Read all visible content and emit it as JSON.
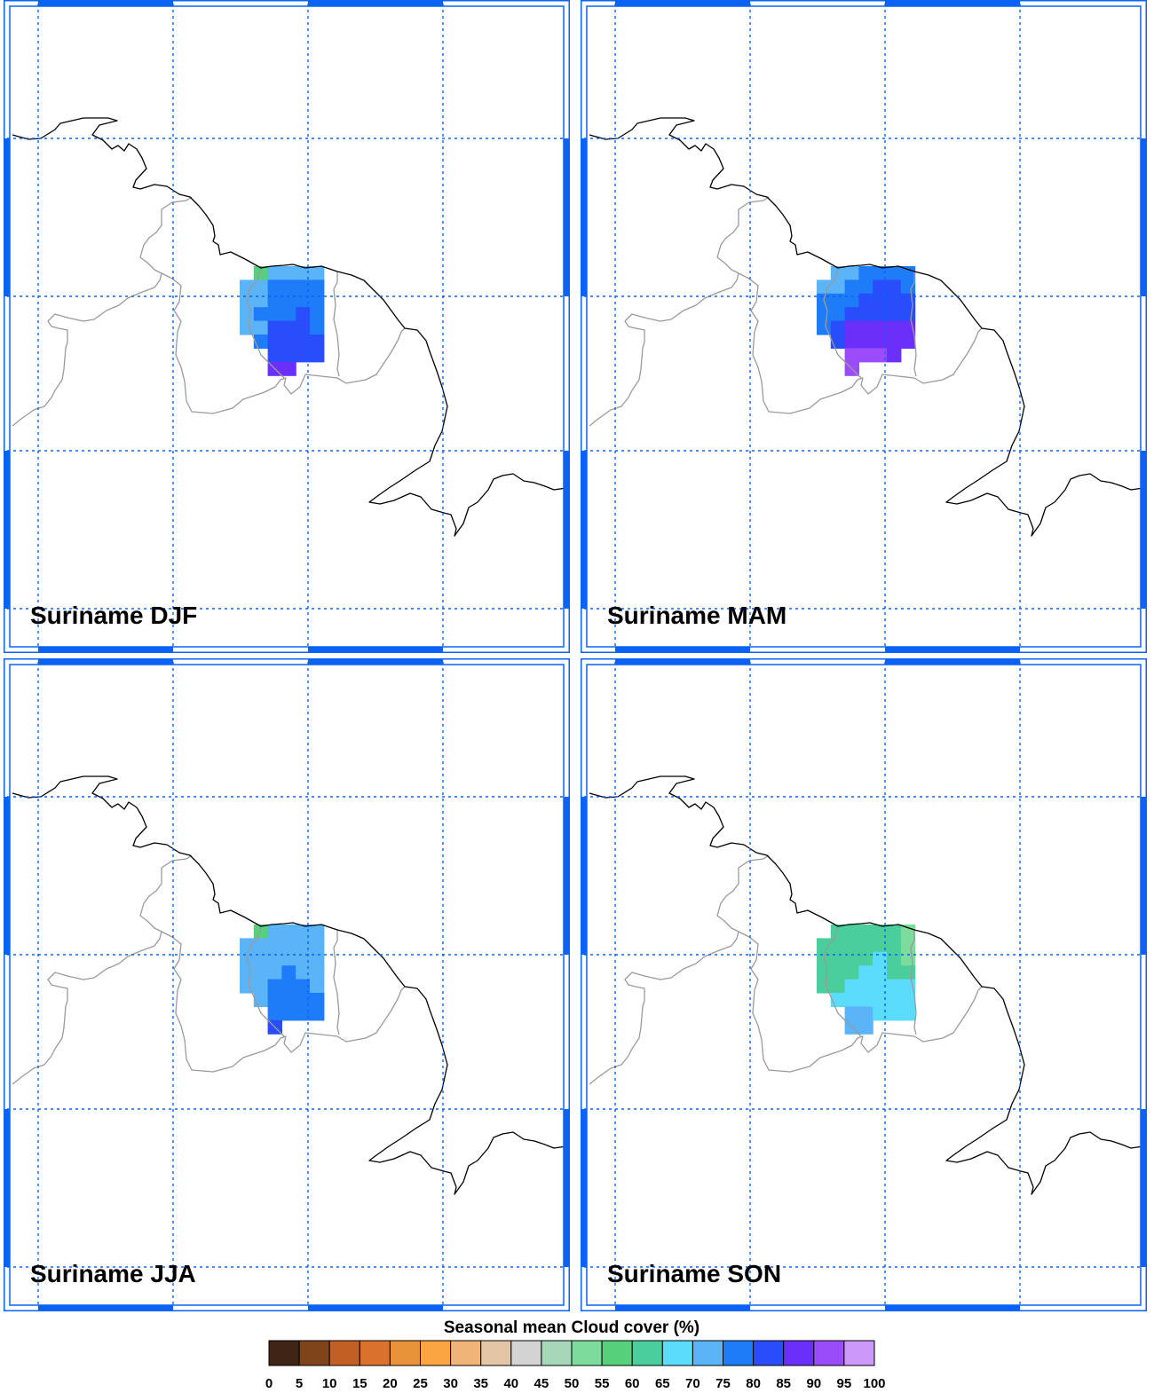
{
  "panels": [
    {
      "label": "Suriname DJF",
      "season": "DJF",
      "cells": [
        [
          null,
          55,
          70,
          70,
          70,
          70,
          null
        ],
        [
          70,
          70,
          75,
          75,
          75,
          75,
          null
        ],
        [
          70,
          70,
          75,
          75,
          75,
          75,
          null
        ],
        [
          70,
          75,
          75,
          75,
          80,
          75,
          null
        ],
        [
          70,
          70,
          80,
          80,
          80,
          75,
          null
        ],
        [
          null,
          75,
          80,
          80,
          80,
          80,
          null
        ],
        [
          null,
          null,
          80,
          80,
          80,
          80,
          null
        ],
        [
          null,
          null,
          85,
          85,
          null,
          null,
          null
        ]
      ]
    },
    {
      "label": "Suriname MAM",
      "season": "MAM",
      "cells": [
        [
          null,
          70,
          70,
          75,
          75,
          75,
          75
        ],
        [
          70,
          70,
          75,
          75,
          80,
          80,
          75
        ],
        [
          75,
          75,
          75,
          80,
          80,
          80,
          80
        ],
        [
          75,
          75,
          80,
          80,
          80,
          80,
          80
        ],
        [
          75,
          80,
          85,
          85,
          85,
          85,
          85
        ],
        [
          null,
          80,
          85,
          85,
          85,
          85,
          85
        ],
        [
          null,
          null,
          90,
          90,
          90,
          85,
          null
        ],
        [
          null,
          null,
          90,
          null,
          null,
          null,
          null
        ]
      ]
    },
    {
      "label": "Suriname JJA",
      "season": "JJA",
      "cells": [
        [
          null,
          55,
          70,
          70,
          70,
          70,
          null
        ],
        [
          70,
          70,
          70,
          70,
          70,
          70,
          null
        ],
        [
          70,
          70,
          70,
          70,
          70,
          70,
          null
        ],
        [
          70,
          70,
          70,
          75,
          70,
          70,
          null
        ],
        [
          70,
          70,
          75,
          75,
          75,
          70,
          null
        ],
        [
          null,
          70,
          75,
          75,
          75,
          75,
          null
        ],
        [
          null,
          null,
          75,
          75,
          75,
          75,
          null
        ],
        [
          null,
          null,
          80,
          null,
          null,
          null,
          null
        ]
      ]
    },
    {
      "label": "Suriname SON",
      "season": "SON",
      "cells": [
        [
          null,
          60,
          60,
          60,
          60,
          60,
          50
        ],
        [
          60,
          60,
          60,
          60,
          60,
          60,
          50
        ],
        [
          60,
          60,
          60,
          60,
          65,
          60,
          50
        ],
        [
          60,
          60,
          60,
          65,
          65,
          60,
          60
        ],
        [
          60,
          60,
          65,
          65,
          65,
          65,
          65
        ],
        [
          null,
          65,
          65,
          65,
          65,
          65,
          65
        ],
        [
          null,
          null,
          70,
          70,
          65,
          65,
          65
        ],
        [
          null,
          null,
          70,
          70,
          null,
          null,
          null
        ]
      ]
    }
  ],
  "colorbar": {
    "title": "Seasonal mean Cloud cover (%)",
    "tick_labels": [
      "0",
      "5",
      "10",
      "15",
      "20",
      "25",
      "30",
      "35",
      "40",
      "45",
      "50",
      "55",
      "60",
      "65",
      "70",
      "75",
      "80",
      "85",
      "90",
      "95",
      "100"
    ],
    "colors": [
      "#3f2414",
      "#7f4419",
      "#c25f25",
      "#d8722d",
      "#e8923a",
      "#fba542",
      "#f0b479",
      "#e3c6a5",
      "#d3d3d3",
      "#a4d8b6",
      "#7bdc9b",
      "#56d07a",
      "#4ace9c",
      "#5bdcfb",
      "#5cb4f8",
      "#1e7cf8",
      "#2a4dfb",
      "#6a2ff8",
      "#9a4cfb",
      "#cc99fa"
    ]
  },
  "map_colors": {
    "grid": "#0a63f5",
    "frame": "#0a63f5",
    "coast": "#000000",
    "border": "#9a9a9a"
  }
}
